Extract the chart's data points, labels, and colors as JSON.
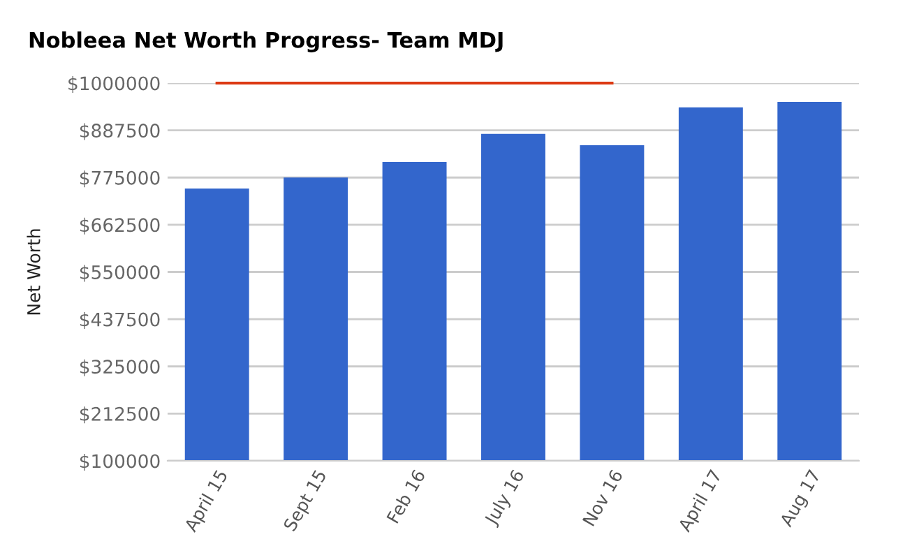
{
  "chart_data": {
    "type": "bar",
    "title": "Nobleea Net Worth Progress- Team MDJ",
    "ylabel": "Net Worth",
    "categories": [
      "April 15",
      "Sept 15",
      "Feb 16",
      "July 16",
      "Nov 16",
      "April 17",
      "Aug 17"
    ],
    "series": [
      {
        "color": "#3366cc",
        "values": [
          749000,
          775000,
          812000,
          879000,
          852000,
          942000,
          955000
        ]
      },
      {
        "type": "line",
        "color": "#dc3912",
        "values": [
          1000000,
          1000000,
          1000000,
          1000000,
          1000000,
          null,
          null
        ]
      }
    ],
    "ylim": [
      100000,
      1000000
    ],
    "yticks": [
      {
        "value": 100000,
        "label": "$100000"
      },
      {
        "value": 212500,
        "label": "$212500"
      },
      {
        "value": 325000,
        "label": "$325000"
      },
      {
        "value": 437500,
        "label": "$437500"
      },
      {
        "value": 550000,
        "label": "$550000"
      },
      {
        "value": 662500,
        "label": "$662500"
      },
      {
        "value": 775000,
        "label": "$775000"
      },
      {
        "value": 887500,
        "label": "$887500"
      },
      {
        "value": 1000000,
        "label": "$1000000"
      }
    ],
    "grid": "y",
    "legend": false
  }
}
